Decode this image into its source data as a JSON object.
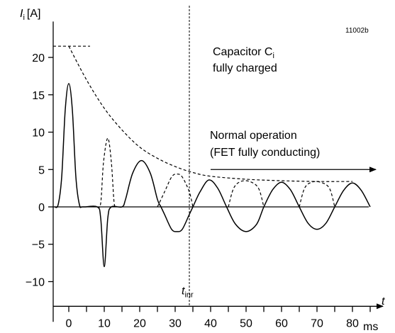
{
  "chart_data": {
    "type": "line",
    "y_label": {
      "symbol": "I",
      "sub": "i",
      "unit": "[A]"
    },
    "x_label": "t",
    "x_unit": "ms",
    "code": "11002b",
    "xlim": [
      -4.4,
      88.6
    ],
    "ylim": [
      -13.3,
      24.8
    ],
    "xticks": [
      0,
      10,
      20,
      30,
      40,
      50,
      60,
      70,
      80
    ],
    "xminor": [
      5,
      15,
      25,
      35,
      45,
      55,
      65,
      75,
      85
    ],
    "yticks": [
      {
        "value": -10,
        "label": "−10"
      },
      {
        "value": -5,
        "label": "−5"
      },
      0,
      5,
      10,
      15,
      20
    ],
    "series": [
      {
        "style": "solid",
        "x": [
          -4,
          -3,
          -2,
          -1,
          0,
          1,
          2,
          3,
          4,
          8,
          9,
          10,
          11,
          12,
          15,
          16,
          18,
          20.5,
          23,
          25,
          26,
          27,
          29,
          30.5,
          32,
          34,
          35,
          37,
          39.5,
          42,
          44.5,
          47,
          50,
          53,
          55,
          57.5,
          60,
          62.5,
          65,
          67.5,
          70,
          72.5,
          75,
          77.5,
          80,
          82.5,
          85
        ],
        "values": [
          0,
          0.3,
          4,
          13,
          16.5,
          13,
          4,
          0.3,
          0,
          0,
          -1.5,
          -8,
          -1.5,
          0,
          0,
          1,
          4.5,
          6.2,
          4.5,
          1,
          0,
          -1,
          -3,
          -3.3,
          -3,
          -1,
          0,
          2,
          3.6,
          2.5,
          0,
          -2.3,
          -3.3,
          -2.3,
          0,
          2.3,
          3.3,
          2.3,
          0,
          -2.2,
          -3,
          -2.2,
          0,
          2.2,
          3.2,
          2.2,
          0
        ]
      },
      {
        "style": "dashed",
        "x": [
          8,
          9,
          9.8,
          11,
          12,
          12.8,
          13.5,
          null,
          25,
          27,
          29,
          30.5,
          32,
          34,
          35,
          null,
          45,
          46.5,
          48.5,
          51,
          53.5,
          55,
          null,
          65,
          66.5,
          68.5,
          71,
          73.5,
          75
        ],
        "values": [
          0,
          0.5,
          6,
          9.2,
          6,
          0.5,
          0,
          null,
          0,
          2,
          4,
          4.4,
          4,
          2,
          0,
          null,
          0,
          2.5,
          3.4,
          3.4,
          2.5,
          0,
          null,
          0,
          2.5,
          3.3,
          3.3,
          2.5,
          0
        ]
      },
      {
        "style": "dashed",
        "x": [
          0,
          5,
          10,
          15,
          20,
          25,
          30,
          35,
          40,
          50,
          60,
          70,
          80
        ],
        "values": [
          21.5,
          17,
          13.2,
          10.3,
          8,
          6.5,
          5.4,
          4.6,
          4.1,
          3.7,
          3.5,
          3.4,
          3.4
        ]
      },
      {
        "style": "dashed",
        "x": [
          -4.4,
          6
        ],
        "values": [
          21.5,
          21.5
        ]
      }
    ],
    "vline": {
      "x": 34,
      "label": "t",
      "sub": "inr"
    },
    "capacitor_note": {
      "lines": [
        "Capacitor C",
        "fully charged"
      ],
      "sub": "i"
    },
    "normal_note": {
      "lines": [
        "Normal operation",
        "(FET fully conducting)"
      ],
      "arrow_x": [
        40,
        86.6
      ],
      "arrow_y": 5
    }
  }
}
